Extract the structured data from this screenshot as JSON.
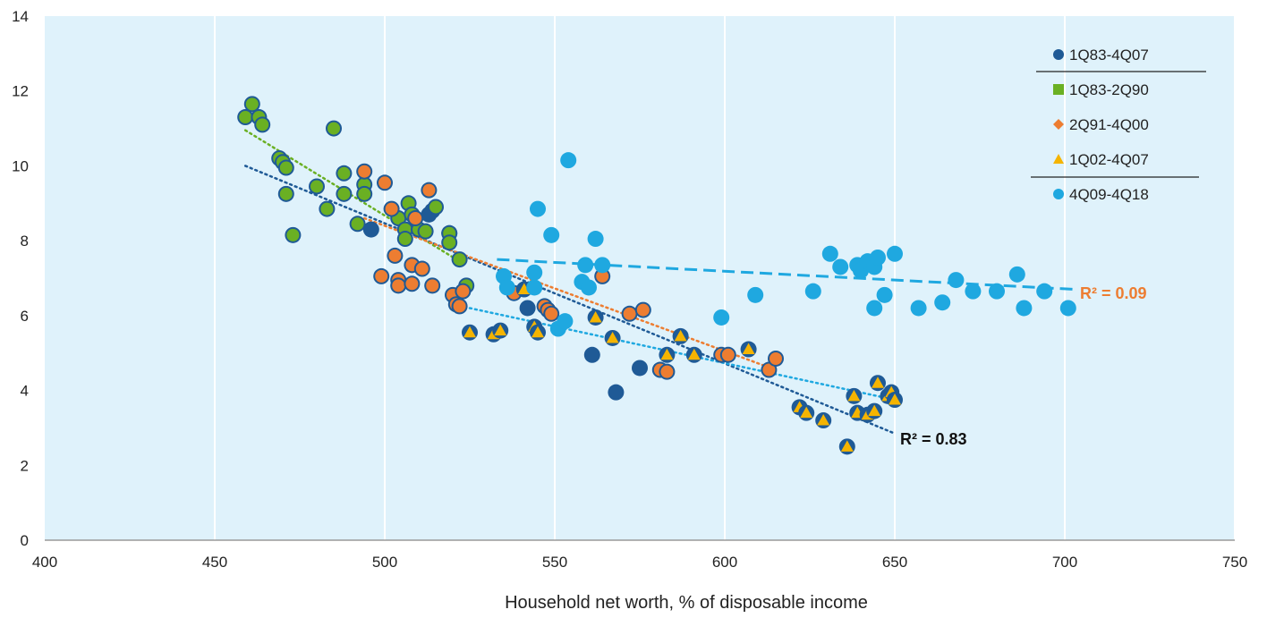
{
  "chart_data": {
    "type": "scatter",
    "xlabel": "Household net worth, % of disposable income",
    "ylabel": "",
    "xlim": [
      400,
      750
    ],
    "ylim": [
      0,
      14
    ],
    "x_ticks": [
      400,
      450,
      500,
      550,
      600,
      650,
      700,
      750
    ],
    "y_ticks": [
      0,
      2,
      4,
      6,
      8,
      10,
      12,
      14
    ],
    "grid": "vertical",
    "background": "#dff2fb",
    "legend_position": "top-right",
    "series": [
      {
        "name": "1Q83-4Q07",
        "marker": "circle",
        "color": "#1f5a96",
        "points": [
          [
            496,
            8.3
          ],
          [
            513,
            8.7
          ],
          [
            514,
            8.8
          ],
          [
            519,
            8.2
          ],
          [
            542,
            6.2
          ],
          [
            561,
            4.95
          ],
          [
            575,
            4.6
          ],
          [
            568,
            3.95
          ]
        ]
      },
      {
        "name": "1Q83-2Q90",
        "marker": "square",
        "color": "#6ab023",
        "points": [
          [
            459,
            11.3
          ],
          [
            461,
            11.65
          ],
          [
            463,
            11.3
          ],
          [
            464,
            11.1
          ],
          [
            469,
            10.2
          ],
          [
            470,
            10.1
          ],
          [
            471,
            9.95
          ],
          [
            471,
            9.25
          ],
          [
            473,
            8.15
          ],
          [
            480,
            9.45
          ],
          [
            483,
            8.85
          ],
          [
            485,
            11.0
          ],
          [
            488,
            9.8
          ],
          [
            488,
            9.25
          ],
          [
            492,
            8.45
          ],
          [
            494,
            9.5
          ],
          [
            494,
            9.25
          ],
          [
            504,
            8.6
          ],
          [
            506,
            8.3
          ],
          [
            506,
            8.05
          ],
          [
            507,
            9.0
          ],
          [
            508,
            8.7
          ],
          [
            510,
            8.3
          ],
          [
            512,
            8.25
          ],
          [
            515,
            8.9
          ],
          [
            519,
            8.2
          ],
          [
            519,
            7.95
          ],
          [
            522,
            7.5
          ],
          [
            524,
            6.8
          ]
        ]
      },
      {
        "name": "2Q91-4Q00",
        "marker": "diamond",
        "color": "#ed7d31",
        "points": [
          [
            494,
            9.85
          ],
          [
            499,
            7.05
          ],
          [
            500,
            9.55
          ],
          [
            502,
            8.85
          ],
          [
            503,
            7.6
          ],
          [
            504,
            6.95
          ],
          [
            504,
            6.8
          ],
          [
            508,
            7.35
          ],
          [
            508,
            6.85
          ],
          [
            509,
            8.6
          ],
          [
            511,
            7.25
          ],
          [
            513,
            9.35
          ],
          [
            514,
            6.8
          ],
          [
            520,
            6.55
          ],
          [
            521,
            6.3
          ],
          [
            522,
            6.25
          ],
          [
            523,
            6.65
          ],
          [
            538,
            6.6
          ],
          [
            547,
            6.25
          ],
          [
            548,
            6.15
          ],
          [
            549,
            6.05
          ],
          [
            564,
            7.05
          ],
          [
            572,
            6.05
          ],
          [
            576,
            6.15
          ],
          [
            581,
            4.55
          ],
          [
            583,
            4.5
          ],
          [
            599,
            4.95
          ],
          [
            601,
            4.95
          ],
          [
            613,
            4.55
          ],
          [
            615,
            4.85
          ]
        ]
      },
      {
        "name": "1Q02-4Q07",
        "marker": "triangle",
        "color": "#f5b400",
        "points": [
          [
            525,
            5.55
          ],
          [
            532,
            5.5
          ],
          [
            534,
            5.6
          ],
          [
            541,
            6.7
          ],
          [
            544,
            5.7
          ],
          [
            545,
            5.55
          ],
          [
            562,
            5.95
          ],
          [
            567,
            5.4
          ],
          [
            583,
            4.95
          ],
          [
            587,
            5.45
          ],
          [
            591,
            4.95
          ],
          [
            607,
            5.1
          ],
          [
            622,
            3.55
          ],
          [
            624,
            3.4
          ],
          [
            629,
            3.2
          ],
          [
            636,
            2.5
          ],
          [
            638,
            3.85
          ],
          [
            639,
            3.4
          ],
          [
            642,
            3.35
          ],
          [
            644,
            3.45
          ],
          [
            645,
            4.2
          ],
          [
            648,
            3.85
          ],
          [
            649,
            3.95
          ],
          [
            650,
            3.75
          ]
        ]
      },
      {
        "name": "4Q09-4Q18",
        "marker": "circle",
        "color": "#1fa8e0",
        "points": [
          [
            535,
            7.05
          ],
          [
            536,
            6.75
          ],
          [
            544,
            7.15
          ],
          [
            544,
            6.75
          ],
          [
            545,
            8.85
          ],
          [
            549,
            8.15
          ],
          [
            551,
            5.65
          ],
          [
            553,
            5.85
          ],
          [
            554,
            10.15
          ],
          [
            558,
            6.9
          ],
          [
            559,
            7.35
          ],
          [
            560,
            6.75
          ],
          [
            562,
            8.05
          ],
          [
            564,
            7.35
          ],
          [
            599,
            5.95
          ],
          [
            609,
            6.55
          ],
          [
            626,
            6.65
          ],
          [
            631,
            7.65
          ],
          [
            634,
            7.3
          ],
          [
            639,
            7.35
          ],
          [
            640,
            7.2
          ],
          [
            642,
            7.45
          ],
          [
            644,
            7.3
          ],
          [
            644,
            6.2
          ],
          [
            645,
            7.55
          ],
          [
            647,
            6.55
          ],
          [
            650,
            7.65
          ],
          [
            657,
            6.2
          ],
          [
            664,
            6.35
          ],
          [
            668,
            6.95
          ],
          [
            673,
            6.65
          ],
          [
            680,
            6.65
          ],
          [
            686,
            7.1
          ],
          [
            688,
            6.2
          ],
          [
            694,
            6.65
          ],
          [
            701,
            6.2
          ]
        ]
      }
    ],
    "trendlines": [
      {
        "color": "#1f5a96",
        "style": "dotted",
        "from": [
          459,
          10.0
        ],
        "to": [
          650,
          2.85
        ]
      },
      {
        "color": "#6ab023",
        "style": "dotted",
        "from": [
          459,
          10.95
        ],
        "to": [
          522,
          7.45
        ]
      },
      {
        "color": "#ed7d31",
        "style": "dotted",
        "from": [
          494,
          8.6
        ],
        "to": [
          615,
          4.55
        ]
      },
      {
        "color": "#1fa8e0",
        "style": "dotted",
        "from": [
          525,
          6.2
        ],
        "to": [
          650,
          3.75
        ]
      },
      {
        "color": "#1fa8e0",
        "style": "dashed",
        "from": [
          533,
          7.5
        ],
        "to": [
          703,
          6.7
        ]
      }
    ],
    "annotations": [
      {
        "text": "R² = 0.83",
        "color": "#111111"
      },
      {
        "text": "R² = 0.09",
        "color": "#ed7d31"
      }
    ]
  }
}
